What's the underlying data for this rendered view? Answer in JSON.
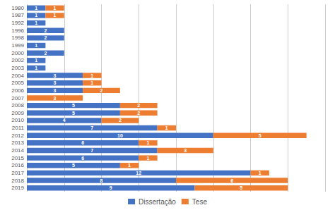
{
  "chart_data": {
    "type": "bar",
    "orientation": "horizontal",
    "stacked": true,
    "data_labels": true,
    "categories": [
      "1980",
      "1987",
      "1992",
      "1996",
      "1998",
      "1999",
      "2000",
      "2002",
      "2003",
      "2004",
      "2005",
      "2006",
      "2007",
      "2008",
      "2009",
      "2010",
      "2011",
      "2012",
      "2013",
      "2014",
      "2015",
      "2016",
      "2017",
      "2018",
      "2019"
    ],
    "series": [
      {
        "name": "Dissertação",
        "color": "#4472C4",
        "values": [
          1,
          1,
          1,
          2,
          2,
          1,
          2,
          1,
          1,
          3,
          3,
          3,
          0,
          5,
          5,
          4,
          7,
          10,
          6,
          7,
          6,
          5,
          12,
          8,
          9
        ]
      },
      {
        "name": "Tese",
        "color": "#ED7D31",
        "values": [
          1,
          1,
          0,
          0,
          0,
          0,
          0,
          0,
          0,
          1,
          1,
          2,
          3,
          2,
          2,
          2,
          1,
          5,
          1,
          3,
          1,
          1,
          1,
          6,
          5
        ]
      }
    ],
    "xlim": [
      0,
      16
    ],
    "xticks": [
      0,
      2,
      4,
      6,
      8,
      10,
      12,
      14,
      16
    ],
    "grid": true,
    "legend": "bottom",
    "tick_labels": "y"
  }
}
